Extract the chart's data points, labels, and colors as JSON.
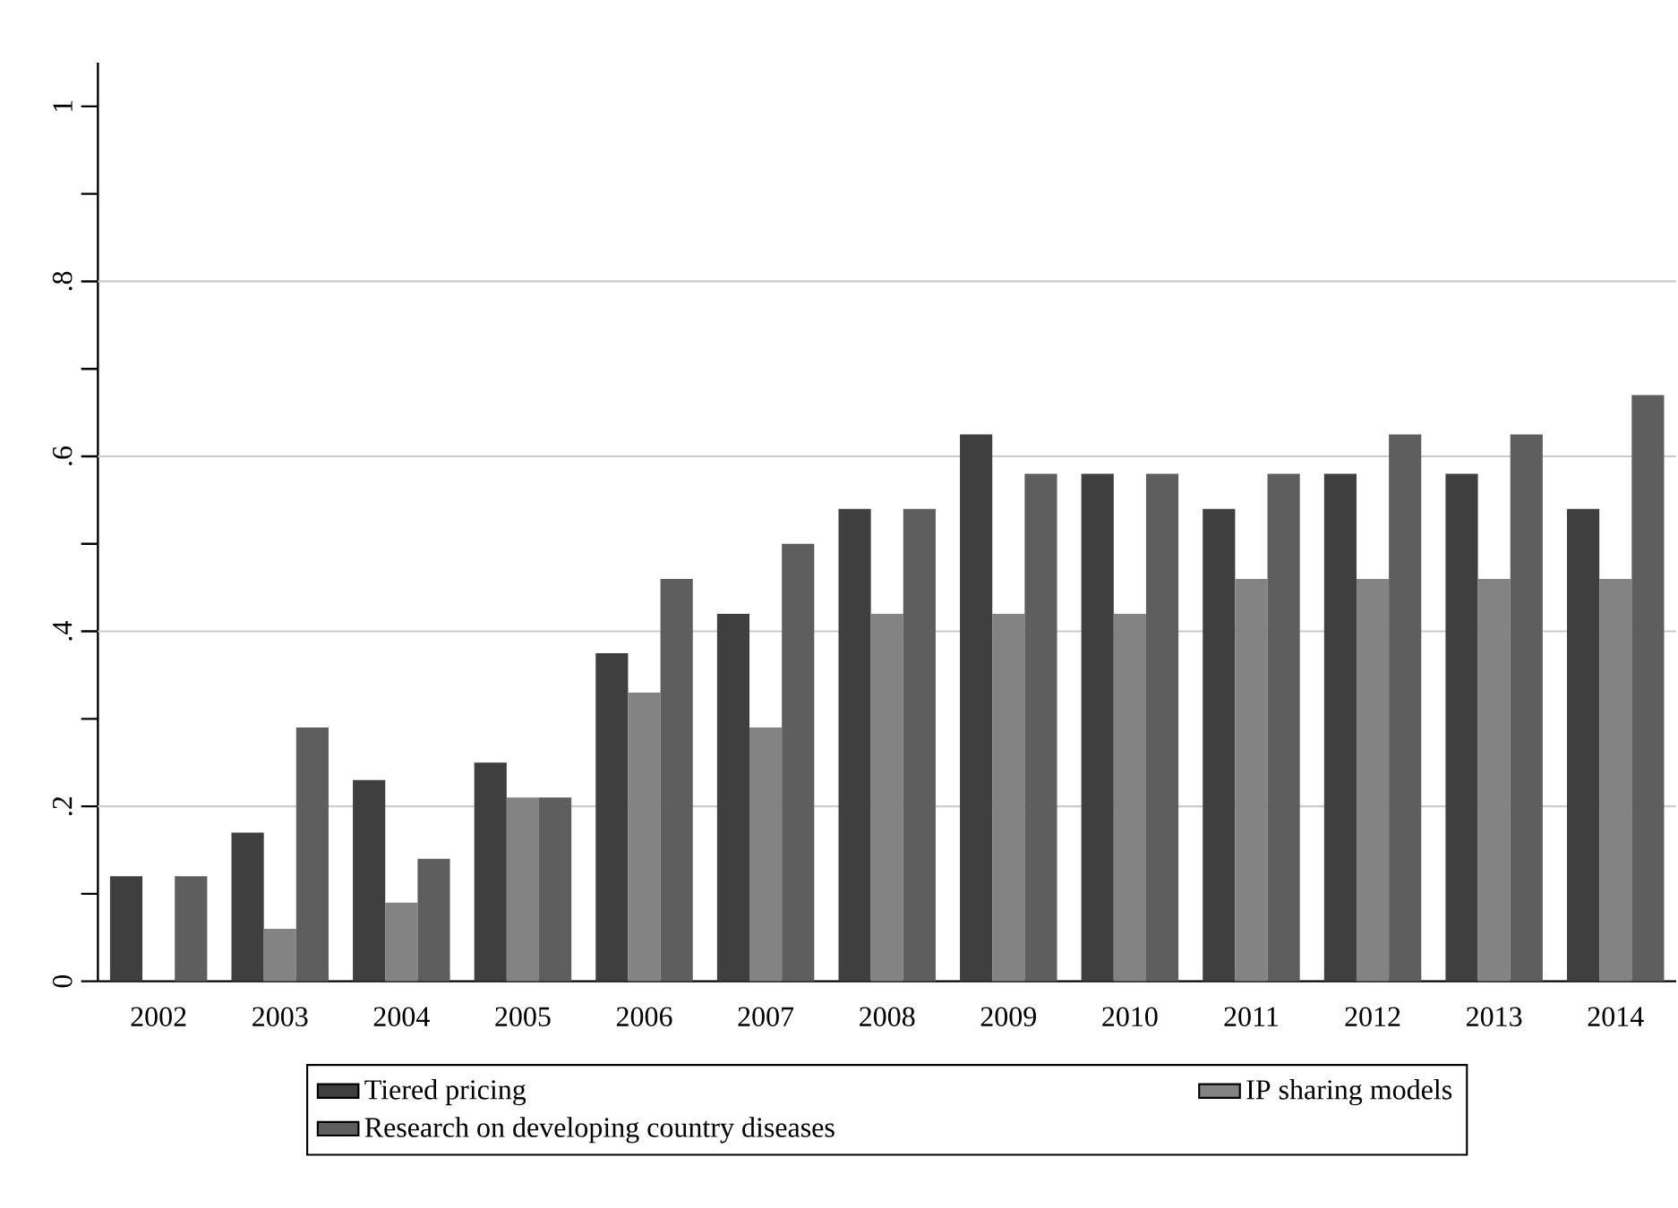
{
  "chart_data": {
    "type": "bar",
    "categories": [
      "2002",
      "2003",
      "2004",
      "2005",
      "2006",
      "2007",
      "2008",
      "2009",
      "2010",
      "2011",
      "2012",
      "2013",
      "2014"
    ],
    "series": [
      {
        "name": "Tiered pricing",
        "color": "#3f3f3f",
        "values": [
          0.12,
          0.17,
          0.23,
          0.25,
          0.375,
          0.42,
          0.54,
          0.625,
          0.58,
          0.54,
          0.58,
          0.58,
          0.54
        ]
      },
      {
        "name": "IP sharing models",
        "color": "#838383",
        "values": [
          0,
          0.06,
          0.09,
          0.21,
          0.33,
          0.29,
          0.42,
          0.42,
          0.42,
          0.46,
          0.46,
          0.46,
          0.46
        ]
      },
      {
        "name": "Research on developing country diseases",
        "color": "#5e5e5e",
        "values": [
          0.12,
          0.29,
          0.14,
          0.21,
          0.46,
          0.5,
          0.54,
          0.58,
          0.58,
          0.58,
          0.625,
          0.625,
          0.67
        ]
      }
    ],
    "ylim": [
      0,
      1.05
    ],
    "yticks": [
      0,
      {
        "value": 0.1,
        "label": null
      },
      {
        "value": 0.2,
        "label": ".2"
      },
      {
        "value": 0.3,
        "label": null
      },
      {
        "value": 0.4,
        "label": ".4"
      },
      {
        "value": 0.5,
        "label": null
      },
      {
        "value": 0.6,
        "label": ".6"
      },
      {
        "value": 0.7,
        "label": null
      },
      {
        "value": 0.8,
        "label": ".8"
      },
      {
        "value": 0.9,
        "label": null
      },
      1
    ],
    "grid": "y",
    "legend": "bottom"
  }
}
